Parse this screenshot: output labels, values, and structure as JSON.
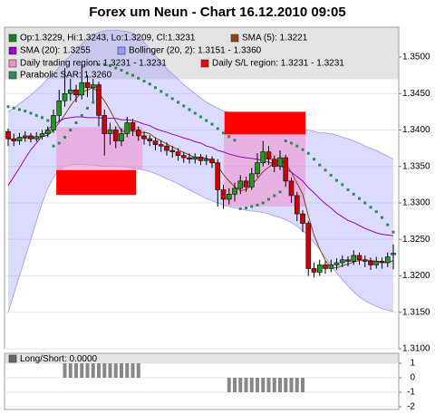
{
  "chart_data": [
    {
      "type": "candlestick",
      "title": "Forex um Neun - Chart 16.12.2010 09:05",
      "ohlc_label": "Op:1.3229, Hi:1.3243, Lo:1.3209, Cl:1.3231",
      "ohlc_color": "#1f7a1f",
      "up_color": "#1f9a1f",
      "down_color": "#cc0000",
      "open": [
        1.3398,
        1.3388,
        1.3385,
        1.339,
        1.3392,
        1.3388,
        1.3391,
        1.3395,
        1.34,
        1.342,
        1.344,
        1.345,
        1.3455,
        1.3448,
        1.3465,
        1.3458,
        1.3462,
        1.342,
        1.3395,
        1.34,
        1.3385,
        1.3395,
        1.341,
        1.34,
        1.3392,
        1.3388,
        1.3385,
        1.338,
        1.3378,
        1.3372,
        1.337,
        1.3365,
        1.3362,
        1.336,
        1.3363,
        1.3358,
        1.336,
        1.3355,
        1.3318,
        1.3305,
        1.3312,
        1.332,
        1.333,
        1.3322,
        1.334,
        1.3355,
        1.337,
        1.336,
        1.335,
        1.3362,
        1.333,
        1.331,
        1.3285,
        1.3272,
        1.321,
        1.3205,
        1.3215,
        1.321,
        1.3215,
        1.3218,
        1.3222,
        1.322,
        1.3228,
        1.3222,
        1.322,
        1.3215,
        1.322,
        1.3218,
        1.3229
      ],
      "high": [
        1.3402,
        1.3395,
        1.3396,
        1.3398,
        1.3396,
        1.3397,
        1.34,
        1.3405,
        1.3428,
        1.3455,
        1.3485,
        1.347,
        1.3462,
        1.349,
        1.3475,
        1.347,
        1.3466,
        1.3428,
        1.341,
        1.3405,
        1.3402,
        1.3418,
        1.3415,
        1.3405,
        1.3398,
        1.3393,
        1.339,
        1.3386,
        1.3383,
        1.3378,
        1.3375,
        1.337,
        1.3368,
        1.3368,
        1.3367,
        1.3366,
        1.3364,
        1.336,
        1.3325,
        1.332,
        1.3328,
        1.3338,
        1.3336,
        1.3348,
        1.3368,
        1.3385,
        1.3378,
        1.3365,
        1.3372,
        1.3366,
        1.3335,
        1.3315,
        1.329,
        1.3275,
        1.3218,
        1.3222,
        1.322,
        1.3222,
        1.3224,
        1.3228,
        1.3227,
        1.3235,
        1.3232,
        1.3228,
        1.3225,
        1.3226,
        1.3225,
        1.3232,
        1.3243
      ],
      "low": [
        1.3378,
        1.3378,
        1.338,
        1.3384,
        1.3383,
        1.3384,
        1.3387,
        1.339,
        1.3396,
        1.3412,
        1.3432,
        1.344,
        1.3438,
        1.3442,
        1.3445,
        1.344,
        1.3405,
        1.3365,
        1.338,
        1.3375,
        1.3378,
        1.339,
        1.3392,
        1.3385,
        1.338,
        1.3378,
        1.3372,
        1.337,
        1.3365,
        1.3362,
        1.3358,
        1.3355,
        1.3354,
        1.3354,
        1.3352,
        1.3352,
        1.3348,
        1.3295,
        1.3292,
        1.3298,
        1.3302,
        1.3312,
        1.3315,
        1.3318,
        1.3335,
        1.335,
        1.3352,
        1.3342,
        1.3345,
        1.3322,
        1.33,
        1.3275,
        1.326,
        1.32,
        1.3198,
        1.32,
        1.3203,
        1.3205,
        1.3208,
        1.3212,
        1.3213,
        1.3215,
        1.3215,
        1.3212,
        1.3208,
        1.321,
        1.321,
        1.3212,
        1.3209
      ],
      "close": [
        1.3388,
        1.3385,
        1.339,
        1.3392,
        1.3388,
        1.3391,
        1.3395,
        1.34,
        1.342,
        1.344,
        1.345,
        1.3455,
        1.3448,
        1.3465,
        1.3458,
        1.3462,
        1.342,
        1.3395,
        1.34,
        1.3385,
        1.3395,
        1.341,
        1.34,
        1.3392,
        1.3388,
        1.3385,
        1.338,
        1.3378,
        1.3372,
        1.337,
        1.3365,
        1.3362,
        1.336,
        1.3363,
        1.3358,
        1.336,
        1.3355,
        1.3318,
        1.3305,
        1.3312,
        1.332,
        1.333,
        1.3322,
        1.334,
        1.3355,
        1.337,
        1.336,
        1.335,
        1.3362,
        1.333,
        1.331,
        1.3285,
        1.3272,
        1.321,
        1.3205,
        1.3215,
        1.321,
        1.3215,
        1.3218,
        1.3222,
        1.322,
        1.3228,
        1.3222,
        1.322,
        1.3215,
        1.322,
        1.3218,
        1.3226,
        1.3231
      ],
      "overlays": [
        {
          "name": "SMA (5): 1.3221",
          "type": "line",
          "color": "#8b4513",
          "values": [
            1.3388,
            1.3387,
            1.3388,
            1.3389,
            1.3389,
            1.3389,
            1.3391,
            1.3393,
            1.34,
            1.341,
            1.3421,
            1.3433,
            1.3443,
            1.3452,
            1.3455,
            1.3458,
            1.3451,
            1.344,
            1.3427,
            1.3412,
            1.3399,
            1.3397,
            1.3399,
            1.3396,
            1.3397,
            1.3395,
            1.3389,
            1.3385,
            1.3381,
            1.3377,
            1.3373,
            1.3369,
            1.3366,
            1.3362,
            1.3362,
            1.3361,
            1.3359,
            1.3351,
            1.3339,
            1.333,
            1.3322,
            1.3317,
            1.3318,
            1.3325,
            1.3333,
            1.3343,
            1.3349,
            1.3355,
            1.3359,
            1.3354,
            1.3342,
            1.3327,
            1.3312,
            1.3282,
            1.3256,
            1.3237,
            1.3221,
            1.3211,
            1.3211,
            1.3214,
            1.3216,
            1.3219,
            1.3221,
            1.3222,
            1.3221,
            1.322,
            1.3219,
            1.3218,
            1.3221
          ]
        },
        {
          "name": "SMA (20): 1.3255",
          "type": "line",
          "color": "#9900cc",
          "values": [
            1.3324,
            1.3336,
            1.3348,
            1.3361,
            1.3373,
            1.3382,
            1.3392,
            1.3401,
            1.3407,
            1.3412,
            1.3416,
            1.3417,
            1.3418,
            1.3418,
            1.3417,
            1.3417,
            1.3417,
            1.3416,
            1.3416,
            1.3416,
            1.3414,
            1.3414,
            1.3413,
            1.3411,
            1.3408,
            1.3406,
            1.3402,
            1.3399,
            1.3397,
            1.3394,
            1.3392,
            1.3389,
            1.3387,
            1.3384,
            1.3382,
            1.3378,
            1.3376,
            1.3372,
            1.337,
            1.3367,
            1.3365,
            1.3363,
            1.3362,
            1.3361,
            1.336,
            1.3358,
            1.3356,
            1.3353,
            1.3351,
            1.3347,
            1.3342,
            1.3336,
            1.333,
            1.3321,
            1.3314,
            1.3306,
            1.3299,
            1.3293,
            1.3286,
            1.3281,
            1.3276,
            1.3273,
            1.3269,
            1.3265,
            1.3262,
            1.3259,
            1.3257,
            1.3256,
            1.3255
          ]
        },
        {
          "name": "Bollinger (20, 2): 1.3151 - 1.3360",
          "type": "band",
          "color": "#9999ff",
          "upper": [
            1.3425,
            1.343,
            1.3436,
            1.3442,
            1.3448,
            1.3455,
            1.3462,
            1.347,
            1.3478,
            1.3486,
            1.3495,
            1.3502,
            1.351,
            1.3518,
            1.3524,
            1.353,
            1.3534,
            1.3536,
            1.3537,
            1.3537,
            1.3536,
            1.3535,
            1.3533,
            1.3528,
            1.352,
            1.3512,
            1.3502,
            1.3493,
            1.3484,
            1.3477,
            1.347,
            1.3462,
            1.3456,
            1.345,
            1.3444,
            1.3438,
            1.3434,
            1.343,
            1.3426,
            1.3424,
            1.3421,
            1.3418,
            1.3415,
            1.3412,
            1.341,
            1.3408,
            1.3406,
            1.3405,
            1.3404,
            1.3403,
            1.3403,
            1.3402,
            1.3401,
            1.34,
            1.3398,
            1.3396,
            1.3396,
            1.3395,
            1.3393,
            1.339,
            1.3388,
            1.3385,
            1.3382,
            1.3378,
            1.3375,
            1.3372,
            1.3368,
            1.3364,
            1.336
          ],
          "lower": [
            1.315,
            1.3175,
            1.32,
            1.3225,
            1.325,
            1.3275,
            1.33,
            1.332,
            1.3335,
            1.3345,
            1.335,
            1.3352,
            1.3353,
            1.3353,
            1.3352,
            1.3352,
            1.3351,
            1.335,
            1.335,
            1.335,
            1.335,
            1.3349,
            1.3348,
            1.3347,
            1.3345,
            1.3343,
            1.334,
            1.3337,
            1.3333,
            1.333,
            1.3326,
            1.3322,
            1.3318,
            1.3314,
            1.331,
            1.3306,
            1.3303,
            1.33,
            1.3297,
            1.3295,
            1.3293,
            1.3292,
            1.329,
            1.3289,
            1.3288,
            1.3287,
            1.3285,
            1.3282,
            1.328,
            1.3277,
            1.3273,
            1.3268,
            1.3262,
            1.3255,
            1.3246,
            1.3236,
            1.3225,
            1.3214,
            1.3204,
            1.3195,
            1.3186,
            1.3178,
            1.3171,
            1.3166,
            1.3162,
            1.3158,
            1.3155,
            1.3153,
            1.3151
          ]
        },
        {
          "name": "Parabolic SAR: 1.3260",
          "type": "dots",
          "color": "#2e8b57",
          "values": [
            1.3432,
            1.343,
            1.3428,
            1.3426,
            1.3423,
            1.342,
            1.3417,
            1.3413,
            1.3378,
            1.3382,
            1.339,
            1.34,
            1.341,
            1.342,
            1.343,
            1.3438,
            1.349,
            1.349,
            1.3488,
            1.3485,
            1.3482,
            1.3478,
            1.3475,
            1.3471,
            1.3467,
            1.3463,
            1.3458,
            1.3453,
            1.3448,
            1.3443,
            1.3438,
            1.3433,
            1.3428,
            1.3423,
            1.3418,
            1.3413,
            1.3408,
            1.3402,
            1.3396,
            1.3391,
            1.3386,
            1.3292,
            1.3293,
            1.3295,
            1.3297,
            1.33,
            1.3305,
            1.331,
            1.3315,
            1.3385,
            1.3382,
            1.3378,
            1.3373,
            1.3368,
            1.336,
            1.3352,
            1.3345,
            1.3338,
            1.3331,
            1.3325,
            1.3318,
            1.3312,
            1.3306,
            1.33,
            1.3294,
            1.3288,
            1.328,
            1.327,
            1.326
          ]
        }
      ],
      "regions": [
        {
          "name": "Daily trading region: 1.3231 - 1.3231",
          "color": "#f090c8",
          "opacity": 0.55,
          "areas": [
            {
              "from": 8.5,
              "to": 23.7,
              "low": 1.3345,
              "high": 1.3404
            },
            {
              "from": 38.1,
              "to": 52.5,
              "low": 1.3295,
              "high": 1.3398
            }
          ]
        },
        {
          "name": "Daily S/L region: 1.3231 - 1.3231",
          "color": "#ff0000",
          "opacity": 1,
          "areas": [
            {
              "from": 8.5,
              "to": 22.6,
              "low": 1.3311,
              "high": 1.3345
            },
            {
              "from": 38.2,
              "to": 52.5,
              "low": 1.3394,
              "high": 1.3425
            }
          ]
        }
      ],
      "ylim": [
        1.31,
        1.3541
      ],
      "yticks": [
        {
          "value": 1.31,
          "label": "1.3100"
        },
        {
          "value": 1.315,
          "label": "1.3150"
        },
        {
          "value": 1.32,
          "label": "1.3200"
        },
        {
          "value": 1.325,
          "label": "1.3250"
        },
        {
          "value": 1.33,
          "label": "1.3300"
        },
        {
          "value": 1.335,
          "label": "1.3350"
        },
        {
          "value": 1.34,
          "label": "1.3400"
        },
        {
          "value": 1.345,
          "label": "1.3450"
        },
        {
          "value": 1.35,
          "label": "1.3500"
        }
      ],
      "grid": true
    },
    {
      "type": "bar",
      "title": "Long/Short: 0.0000",
      "color": "#888888",
      "values": [
        0,
        0,
        0,
        0,
        0,
        0,
        0,
        0,
        0,
        0,
        1,
        1,
        1,
        1,
        1,
        1,
        1,
        1,
        1,
        1,
        1,
        1,
        1,
        1,
        0,
        0,
        0,
        0,
        0,
        0,
        0,
        0,
        0,
        0,
        0,
        0,
        0,
        0,
        0,
        -1,
        -1,
        -1,
        -1,
        -1,
        -1,
        -1,
        -1,
        -1,
        -1,
        -1,
        -1,
        -1,
        -1,
        0,
        0,
        0,
        0,
        0,
        0,
        0,
        0,
        0,
        0,
        0,
        0,
        0,
        0,
        0,
        0
      ],
      "ylim": [
        -2.19,
        1.69
      ],
      "yticks": [
        1,
        0,
        -1,
        -2
      ],
      "grid": true
    }
  ]
}
